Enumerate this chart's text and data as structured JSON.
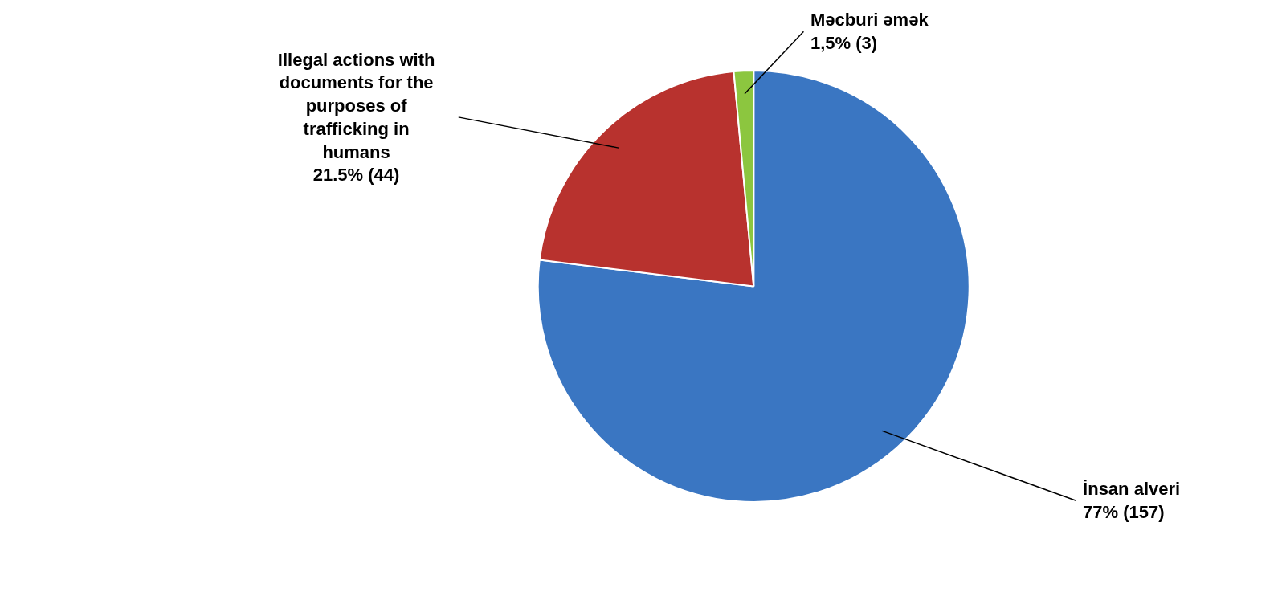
{
  "chart_data": {
    "type": "pie",
    "categories": [
      "İnsan alveri",
      "Illegal actions with documents for the purposes of trafficking in humans",
      "Məcburi əmək"
    ],
    "values": [
      157,
      44,
      3
    ],
    "value_labels": [
      "77% (157)",
      "21.5% (44)",
      "1,5% (3)"
    ],
    "colors": [
      "#3a76c2",
      "#b8322e",
      "#8cc63f"
    ]
  }
}
